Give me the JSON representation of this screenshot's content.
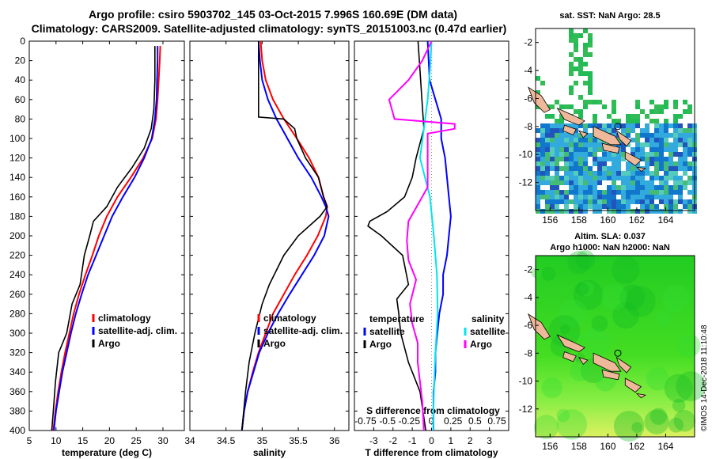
{
  "title": {
    "line1": "Argo profile: csiro 5903702_145 03-Oct-2015 7.996S 160.69E (DM data)",
    "line2": "Climatology: CARS2009. Satellite-adjusted climatology: synTS_20151003.nc (0.47d earlier)"
  },
  "colors": {
    "climatology": "#ff0000",
    "satellite": "#0000ff",
    "argo": "#000000",
    "sal_satellite": "#00ffff",
    "sal_argo": "#ff00ff"
  },
  "chart_data": [
    {
      "type": "line",
      "name": "temperature",
      "xlabel": "temperature (deg C)",
      "xlim": [
        5,
        34
      ],
      "ylim": [
        0,
        400
      ],
      "xticks": [
        "5",
        "10",
        "15",
        "20",
        "25",
        "30"
      ],
      "yticks": [
        "0",
        "20",
        "40",
        "60",
        "80",
        "100",
        "120",
        "140",
        "160",
        "180",
        "200",
        "220",
        "240",
        "260",
        "280",
        "300",
        "320",
        "340",
        "360",
        "380",
        "400"
      ],
      "legend": [
        "climatology",
        "satellite-adj. clim.",
        "Argo"
      ],
      "series": [
        {
          "name": "climatology",
          "color": "red",
          "depth": [
            5,
            20,
            40,
            60,
            80,
            100,
            120,
            140,
            160,
            180,
            200,
            220,
            240,
            260,
            280,
            300,
            320,
            340,
            360,
            380,
            400
          ],
          "values": [
            29.5,
            29.4,
            29.2,
            29.0,
            28.7,
            28.0,
            26.3,
            24.0,
            21.5,
            19.5,
            18.0,
            16.8,
            15.5,
            14.3,
            13.3,
            12.5,
            11.7,
            11.0,
            10.4,
            9.9,
            9.5
          ]
        },
        {
          "name": "satellite-adj. clim.",
          "color": "blue",
          "depth": [
            5,
            20,
            40,
            60,
            80,
            100,
            120,
            140,
            160,
            180,
            200,
            220,
            240,
            260,
            280,
            300,
            320,
            340,
            360,
            380,
            400
          ],
          "values": [
            29.0,
            29.0,
            28.9,
            28.8,
            28.5,
            27.9,
            26.5,
            24.7,
            22.5,
            20.5,
            19.0,
            17.5,
            16.0,
            14.8,
            13.7,
            12.8,
            12.0,
            11.2,
            10.6,
            10.0,
            9.6
          ]
        },
        {
          "name": "Argo",
          "color": "black",
          "depth": [
            5,
            40,
            70,
            90,
            110,
            130,
            150,
            170,
            185,
            200,
            220,
            250,
            270,
            300,
            320,
            350,
            380,
            400
          ],
          "values": [
            28.5,
            28.5,
            28.3,
            27.8,
            26.5,
            24.2,
            21.5,
            19.5,
            17.0,
            16.3,
            15.3,
            14.5,
            13.0,
            12.0,
            10.5,
            9.9,
            9.5,
            9.2
          ]
        }
      ]
    },
    {
      "type": "line",
      "name": "salinity",
      "xlabel": "salinity",
      "xlim": [
        34,
        36.2
      ],
      "ylim": [
        0,
        400
      ],
      "xticks": [
        "34",
        "34.5",
        "35",
        "35.5",
        "36"
      ],
      "legend": [
        "climatology",
        "satellite-adj. clim.",
        "Argo"
      ],
      "series": [
        {
          "name": "climatology",
          "color": "red",
          "depth": [
            0,
            20,
            40,
            60,
            80,
            100,
            120,
            140,
            160,
            170,
            180,
            200,
            220,
            240,
            260,
            280,
            300,
            320,
            340,
            360,
            380,
            400
          ],
          "values": [
            34.98,
            35.0,
            35.05,
            35.15,
            35.3,
            35.48,
            35.65,
            35.78,
            35.85,
            35.9,
            35.88,
            35.77,
            35.62,
            35.45,
            35.3,
            35.15,
            35.05,
            34.95,
            34.87,
            34.8,
            34.75,
            34.72
          ]
        },
        {
          "name": "satellite-adj. clim.",
          "color": "blue",
          "depth": [
            0,
            20,
            40,
            60,
            80,
            100,
            120,
            140,
            160,
            170,
            180,
            200,
            220,
            240,
            260,
            280,
            300,
            320,
            340,
            360,
            380,
            400
          ],
          "values": [
            34.95,
            34.97,
            35.0,
            35.08,
            35.2,
            35.35,
            35.5,
            35.68,
            35.82,
            35.88,
            35.92,
            35.86,
            35.72,
            35.55,
            35.38,
            35.22,
            35.08,
            34.96,
            34.88,
            34.8,
            34.75,
            34.72
          ]
        },
        {
          "name": "Argo",
          "color": "black",
          "depth": [
            0,
            40,
            78,
            80,
            90,
            100,
            120,
            140,
            160,
            170,
            180,
            200,
            220,
            250,
            270,
            300,
            330,
            360,
            400
          ],
          "values": [
            34.95,
            34.95,
            34.95,
            35.3,
            35.45,
            35.48,
            35.6,
            35.78,
            35.85,
            35.9,
            35.8,
            35.5,
            35.3,
            35.1,
            35.0,
            34.9,
            34.82,
            34.77,
            34.72
          ]
        }
      ]
    },
    {
      "type": "line",
      "name": "differences",
      "xlabel": "T difference from climatology",
      "xlim": [
        -4,
        4
      ],
      "ylim": [
        0,
        400
      ],
      "xticks": [
        "-3",
        "-2",
        "-1",
        "0",
        "1",
        "2",
        "3"
      ],
      "top_axis_label": "S difference from climatology",
      "top_xticks": [
        "-0.75",
        "-0.5",
        "-0.25",
        "0",
        "0.25",
        "0.5",
        "0.75"
      ],
      "legend_left_title": "temperature",
      "legend_left": [
        "satellite",
        "Argo"
      ],
      "legend_right_title": "salinity",
      "legend_right": [
        "satellite",
        "Argo"
      ],
      "series": [
        {
          "name": "T satellite",
          "color": "blue",
          "depth": [
            0,
            40,
            80,
            100,
            120,
            140,
            160,
            180,
            200,
            220,
            240,
            260,
            280,
            300,
            320,
            340,
            360,
            380,
            400
          ],
          "values": [
            -0.2,
            -0.1,
            0.5,
            0.5,
            0.7,
            0.8,
            0.9,
            1.0,
            0.9,
            0.8,
            0.6,
            0.6,
            0.4,
            0.3,
            0.2,
            0.2,
            0.1,
            0.1,
            0.1
          ]
        },
        {
          "name": "T Argo",
          "color": "black",
          "depth": [
            0,
            30,
            60,
            90,
            120,
            140,
            160,
            175,
            185,
            190,
            200,
            220,
            250,
            265,
            280,
            300,
            330,
            360,
            400
          ],
          "values": [
            -0.7,
            -0.6,
            -0.5,
            -0.4,
            -0.8,
            -1.0,
            -1.4,
            -2.3,
            -3.2,
            -3.3,
            -2.6,
            -1.5,
            -1.2,
            -1.8,
            -1.7,
            -1.6,
            -1.2,
            -0.6,
            -0.3
          ]
        },
        {
          "name": "S satellite",
          "color": "cyan",
          "depth": [
            0,
            30,
            60,
            90,
            120,
            160,
            200,
            240,
            280,
            320,
            360,
            400
          ],
          "values": [
            0.0,
            -0.02,
            -0.05,
            -0.1,
            -0.15,
            -0.02,
            0.03,
            0.07,
            0.08,
            0.05,
            0.03,
            0.02
          ]
        },
        {
          "name": "S Argo",
          "color": "magenta",
          "depth": [
            0,
            20,
            40,
            60,
            80,
            85,
            90,
            95,
            150,
            185,
            205,
            225,
            245,
            270,
            290,
            310,
            330,
            350,
            370,
            400
          ],
          "values": [
            0.0,
            -0.12,
            -0.3,
            -0.55,
            -0.48,
            0.3,
            0.3,
            -0.05,
            -0.05,
            -0.3,
            -0.32,
            -0.3,
            -0.2,
            -0.28,
            -0.25,
            -0.18,
            -0.18,
            -0.15,
            -0.12,
            -0.1
          ]
        }
      ]
    }
  ],
  "maps": {
    "sst": {
      "title": "sat. SST: NaN Argo: 28.5",
      "xticks": [
        "156",
        "158",
        "160",
        "162",
        "164"
      ],
      "yticks": [
        "-2",
        "-4",
        "-6",
        "-8",
        "-10",
        "-12"
      ]
    },
    "sla": {
      "title1": "Altim. SLA: 0.037",
      "title2": "Argo h1000: NaN h2000: NaN",
      "xticks": [
        "156",
        "158",
        "160",
        "162",
        "164"
      ],
      "yticks": [
        "-2",
        "-4",
        "-6",
        "-8",
        "-10",
        "-12"
      ]
    }
  },
  "stamp": "©IMOS 14-Dec-2018 11:10:48"
}
